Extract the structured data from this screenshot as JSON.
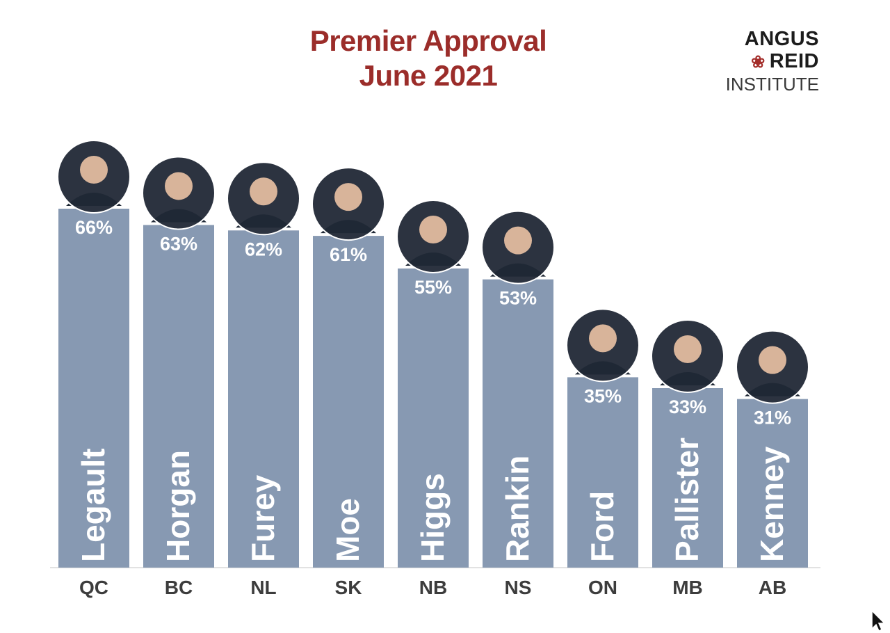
{
  "header": {
    "title_line1": "Premier Approval",
    "title_line2": "June 2021"
  },
  "logo": {
    "line1": "ANGUS",
    "line2": "REID",
    "line3": "INSTITUTE",
    "leaf_icon": "maple-leaf-icon",
    "leaf_color": "#a42e2b"
  },
  "colors": {
    "bar": "#8799b2",
    "title": "#9b2d2a",
    "label_on_bar": "#ffffff",
    "axis_text": "#3c3c3c"
  },
  "chart_data": {
    "type": "bar",
    "title": "Premier Approval June 2021",
    "categories": [
      "QC",
      "BC",
      "NL",
      "SK",
      "NB",
      "NS",
      "ON",
      "MB",
      "AB"
    ],
    "names": [
      "Legault",
      "Horgan",
      "Furey",
      "Moe",
      "Higgs",
      "Rankin",
      "Ford",
      "Pallister",
      "Kenney"
    ],
    "values": [
      66,
      63,
      62,
      61,
      55,
      53,
      35,
      33,
      31
    ],
    "value_labels": [
      "66%",
      "63%",
      "62%",
      "61%",
      "55%",
      "53%",
      "35%",
      "33%",
      "31%"
    ],
    "ylim": [
      0,
      66
    ],
    "grid": false,
    "legend": "none"
  }
}
